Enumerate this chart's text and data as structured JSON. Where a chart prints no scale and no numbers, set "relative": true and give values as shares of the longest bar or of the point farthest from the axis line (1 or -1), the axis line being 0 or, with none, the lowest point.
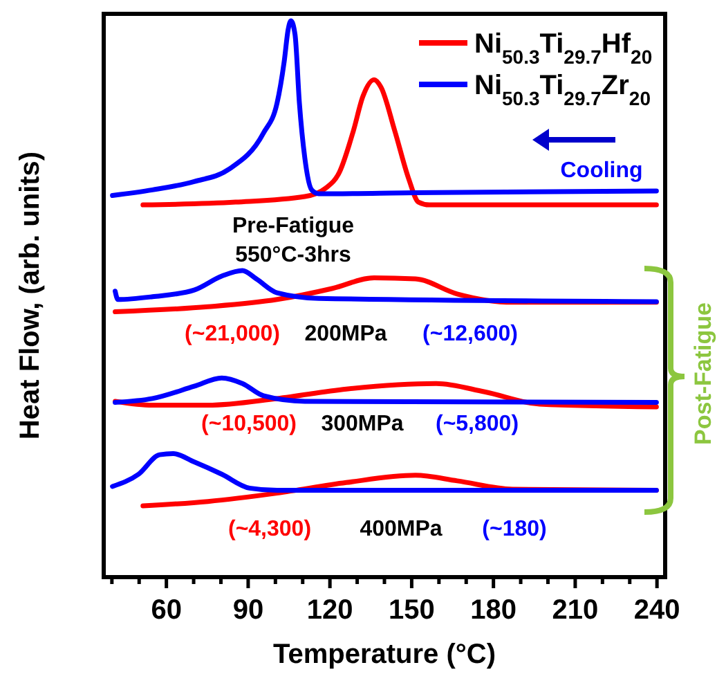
{
  "chart_data": {
    "type": "line",
    "relative": true,
    "xlabel": "Temperature (°C)",
    "ylabel": "Heat Flow, (arb. units)",
    "xlim": [
      37,
      243
    ],
    "xticks": [
      {
        "value": 40,
        "label": null
      },
      {
        "value": 50,
        "label": null
      },
      60,
      {
        "value": 70,
        "label": null
      },
      {
        "value": 80,
        "label": null
      },
      90,
      {
        "value": 100,
        "label": null
      },
      {
        "value": 110,
        "label": null
      },
      120,
      {
        "value": 130,
        "label": null
      },
      {
        "value": 140,
        "label": null
      },
      150,
      {
        "value": 160,
        "label": null
      },
      {
        "value": 170,
        "label": null
      },
      180,
      {
        "value": 190,
        "label": null
      },
      {
        "value": 200,
        "label": null
      },
      210,
      {
        "value": 220,
        "label": null
      },
      {
        "value": 230,
        "label": null
      },
      240
    ],
    "tick_labels": "x",
    "legend": "top right",
    "grid": false,
    "series": [
      {
        "name": "Ni$_{50.3}$Ti$_{29.7}$Hf$_{20}$",
        "color": "#ff0000",
        "x": [
          51.4,
          85.4,
          110.8,
          118.4,
          123.5,
          128.6,
          132.1,
          136.2,
          138.7,
          143.8,
          148.9,
          152.5,
          156.5,
          239.8
        ],
        "values": [
          0.669,
          0.674,
          0.684,
          0.699,
          0.728,
          0.802,
          0.864,
          0.894,
          0.881,
          0.802,
          0.716,
          0.674,
          0.669,
          0.669
        ]
      },
      {
        "name": "Ni$_{50.3}$Ti$_{29.7}$Zr$_{20}$",
        "color": "#0000ff",
        "x": [
          40.2,
          54.9,
          70.2,
          82.9,
          95.6,
          100.6,
          103.2,
          104.7,
          105.7,
          107.2,
          108.8,
          110.8,
          113.3,
          115.9,
          151.4,
          239.8
        ],
        "values": [
          0.686,
          0.696,
          0.711,
          0.733,
          0.798,
          0.852,
          0.926,
          0.985,
          1,
          0.975,
          0.852,
          0.753,
          0.696,
          0.689,
          0.691,
          0.694
        ]
      },
      {
        "color": "#ff0000",
        "x": [
          41.2,
          75.2,
          100.6,
          121,
          136.2,
          151.4,
          166.7,
          187,
          239.8
        ],
        "values": [
          0.477,
          0.486,
          0.499,
          0.519,
          0.538,
          0.536,
          0.509,
          0.494,
          0.494
        ]
      },
      {
        "color": "#0000ff",
        "x": [
          41.2,
          42.2,
          54.9,
          70.2,
          80.3,
          87.9,
          93,
          100.6,
          115.9,
          239.8
        ],
        "values": [
          0.514,
          0.499,
          0.504,
          0.516,
          0.541,
          0.551,
          0.536,
          0.511,
          0.501,
          0.495
        ]
      },
      {
        "color": "#ff0000",
        "x": [
          41.2,
          54.9,
          75.2,
          100.6,
          126,
          159,
          176.8,
          196.9,
          239.8
        ],
        "values": [
          0.316,
          0.309,
          0.309,
          0.321,
          0.338,
          0.348,
          0.333,
          0.311,
          0.306
        ]
      },
      {
        "color": "#0000ff",
        "x": [
          41.2,
          54.9,
          70.2,
          80.3,
          87.9,
          95.6,
          110.8,
          239.8
        ],
        "values": [
          0.314,
          0.321,
          0.343,
          0.358,
          0.348,
          0.326,
          0.316,
          0.314
        ]
      },
      {
        "color": "#ff0000",
        "x": [
          51.4,
          75.2,
          100.6,
          126,
          151.4,
          166.7,
          187,
          239.8
        ],
        "values": [
          0.128,
          0.136,
          0.151,
          0.17,
          0.183,
          0.173,
          0.158,
          0.156
        ]
      },
      {
        "color": "#0000ff",
        "x": [
          40.2,
          49.8,
          57.5,
          62.5,
          70.2,
          80.3,
          90.5,
          100.6,
          239.8
        ],
        "values": [
          0.163,
          0.185,
          0.22,
          0.222,
          0.207,
          0.185,
          0.16,
          0.156,
          0.156
        ]
      }
    ],
    "annotations": [
      "Cooling",
      "Pre-Fatigue",
      "550°C-3hrs",
      "(~21,000)",
      "200MPa",
      "(~12,600)",
      "(~10,500)",
      "300MPa",
      "(~5,800)",
      "(~4,300)",
      "400MPa",
      "(~180)",
      "Post-Fatigue"
    ]
  }
}
